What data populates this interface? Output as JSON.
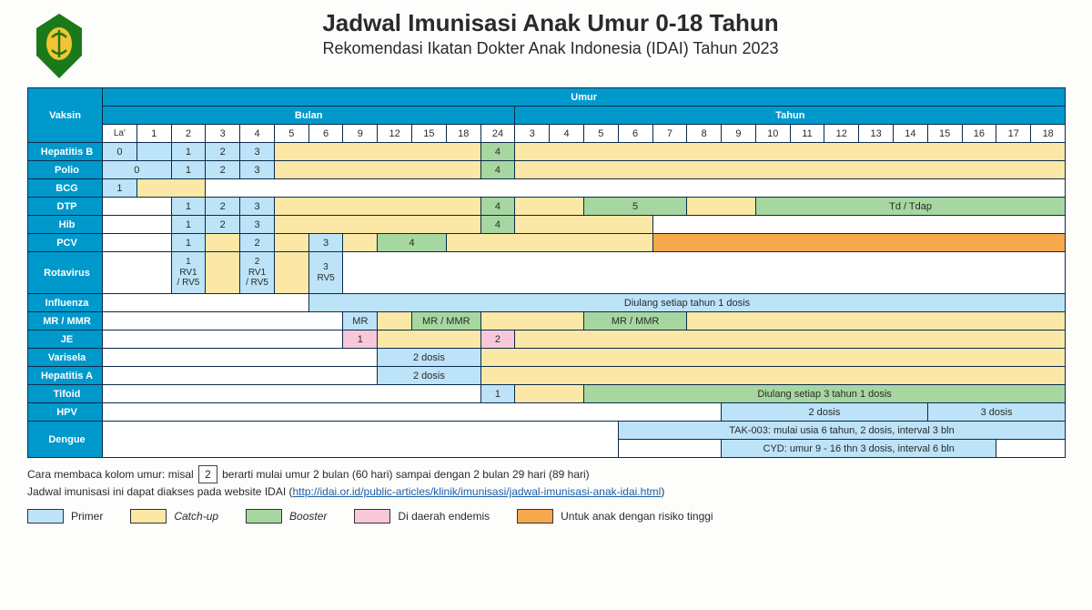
{
  "title": "Jadwal Imunisasi Anak Umur 0-18 Tahun",
  "subtitle": "Rekomendasi Ikatan Dokter Anak Indonesia (IDAI) Tahun 2023",
  "colors": {
    "header_blue": "#0099cc",
    "border": "#0a2a4a",
    "primer": "#bde3f8",
    "catchup": "#fbe8a6",
    "booster": "#a7d7a0",
    "endemis": "#f8c7d9",
    "risiko": "#f5a84c",
    "white": "#ffffff"
  },
  "headers": {
    "vaksin": "Vaksin",
    "umur": "Umur",
    "bulan": "Bulan",
    "tahun": "Tahun"
  },
  "age_cols": {
    "months": [
      "La'",
      "1",
      "2",
      "3",
      "4",
      "5",
      "6",
      "9",
      "12",
      "15",
      "18",
      "24"
    ],
    "years": [
      "3",
      "4",
      "5",
      "6",
      "7",
      "8",
      "9",
      "10",
      "11",
      "12",
      "13",
      "14",
      "15",
      "16",
      "17",
      "18"
    ]
  },
  "vaccines": [
    "Hepatitis B",
    "Polio",
    "BCG",
    "DTP",
    "Hib",
    "PCV",
    "Rotavirus",
    "Influenza",
    "MR / MMR",
    "JE",
    "Varisela",
    "Hepatitis A",
    "Tifoid",
    "HPV",
    "Dengue"
  ],
  "cells": {
    "HepatitisB": {
      "0": {
        "c": "primer",
        "t": "0",
        "span": 1
      },
      "1": {
        "c": "primer",
        "t": "",
        "span": 1
      },
      "2": {
        "c": "primer",
        "t": "1"
      },
      "3": {
        "c": "primer",
        "t": "2"
      },
      "4": {
        "c": "primer",
        "t": "3"
      },
      "5": {
        "c": "catchup",
        "span": 6
      },
      "11": {
        "c": "booster",
        "t": "4"
      },
      "12": {
        "c": "catchup",
        "span": 16
      }
    },
    "Polio": {
      "0": {
        "c": "primer",
        "t": "0",
        "span": 2
      },
      "2": {
        "c": "primer",
        "t": "1"
      },
      "3": {
        "c": "primer",
        "t": "2"
      },
      "4": {
        "c": "primer",
        "t": "3"
      },
      "5": {
        "c": "catchup",
        "span": 6
      },
      "11": {
        "c": "booster",
        "t": "4"
      },
      "12": {
        "c": "catchup",
        "span": 16
      }
    },
    "BCG": {
      "0": {
        "c": "primer",
        "t": "1"
      },
      "1": {
        "c": "catchup",
        "span": 2
      },
      "3": {
        "c": "white",
        "span": 25
      }
    },
    "DTP": {
      "0": {
        "c": "white",
        "span": 2
      },
      "2": {
        "c": "primer",
        "t": "1"
      },
      "3": {
        "c": "primer",
        "t": "2"
      },
      "4": {
        "c": "primer",
        "t": "3"
      },
      "5": {
        "c": "catchup",
        "span": 6
      },
      "11": {
        "c": "booster",
        "t": "4"
      },
      "12": {
        "c": "catchup",
        "span": 2
      },
      "14": {
        "c": "booster",
        "t": "5",
        "span": 3
      },
      "17": {
        "c": "catchup",
        "span": 2
      },
      "19": {
        "c": "booster",
        "t": "Td / Tdap",
        "span": 9
      }
    },
    "Hib": {
      "0": {
        "c": "white",
        "span": 2
      },
      "2": {
        "c": "primer",
        "t": "1"
      },
      "3": {
        "c": "primer",
        "t": "2"
      },
      "4": {
        "c": "primer",
        "t": "3"
      },
      "5": {
        "c": "catchup",
        "span": 6
      },
      "11": {
        "c": "booster",
        "t": "4"
      },
      "12": {
        "c": "catchup",
        "span": 4
      },
      "16": {
        "c": "white",
        "span": 12
      }
    },
    "PCV": {
      "0": {
        "c": "white",
        "span": 2
      },
      "2": {
        "c": "primer",
        "t": "1"
      },
      "3": {
        "c": "catchup"
      },
      "4": {
        "c": "primer",
        "t": "2"
      },
      "5": {
        "c": "catchup"
      },
      "6": {
        "c": "primer",
        "t": "3"
      },
      "7": {
        "c": "catchup"
      },
      "8": {
        "c": "booster",
        "t": "4",
        "span": 2
      },
      "10": {
        "c": "catchup",
        "span": 6
      },
      "16": {
        "c": "risiko",
        "span": 12
      }
    },
    "Rotavirus": {
      "0": {
        "c": "white",
        "span": 2
      },
      "2": {
        "c": "primer",
        "t": "1<br>RV1<br>/ RV5"
      },
      "3": {
        "c": "catchup"
      },
      "4": {
        "c": "primer",
        "t": "2<br>RV1<br>/ RV5"
      },
      "5": {
        "c": "catchup"
      },
      "6": {
        "c": "primer",
        "t": "3<br>RV5"
      },
      "7": {
        "c": "white",
        "span": 21
      }
    },
    "Influenza": {
      "0": {
        "c": "white",
        "span": 6
      },
      "6": {
        "c": "primer",
        "t": "Diulang setiap tahun 1 dosis",
        "span": 22
      }
    },
    "MRMMR": {
      "0": {
        "c": "white",
        "span": 7
      },
      "7": {
        "c": "primer",
        "t": "MR"
      },
      "8": {
        "c": "catchup"
      },
      "9": {
        "c": "booster",
        "t": "MR / MMR",
        "span": 2
      },
      "11": {
        "c": "catchup",
        "span": 3
      },
      "14": {
        "c": "booster",
        "t": "MR / MMR",
        "span": 3
      },
      "17": {
        "c": "catchup",
        "span": 11
      }
    },
    "JE": {
      "0": {
        "c": "white",
        "span": 7
      },
      "7": {
        "c": "endemis",
        "t": "1"
      },
      "8": {
        "c": "catchup",
        "span": 3
      },
      "11": {
        "c": "endemis",
        "t": "2"
      },
      "12": {
        "c": "catchup",
        "span": 16
      }
    },
    "Varisela": {
      "0": {
        "c": "white",
        "span": 8
      },
      "8": {
        "c": "primer",
        "t": "2 dosis",
        "span": 3
      },
      "11": {
        "c": "catchup",
        "span": 17
      }
    },
    "HepatitisA": {
      "0": {
        "c": "white",
        "span": 8
      },
      "8": {
        "c": "primer",
        "t": "2 dosis",
        "span": 3
      },
      "11": {
        "c": "catchup",
        "span": 17
      }
    },
    "Tifoid": {
      "0": {
        "c": "white",
        "span": 11
      },
      "11": {
        "c": "primer",
        "t": "1"
      },
      "12": {
        "c": "catchup",
        "span": 2
      },
      "14": {
        "c": "booster",
        "t": "Diulang setiap 3 tahun 1 dosis",
        "span": 14
      }
    },
    "HPV": {
      "0": {
        "c": "white",
        "span": 18
      },
      "18": {
        "c": "primer",
        "t": "2 dosis",
        "span": 6
      },
      "24": {
        "c": "primer",
        "t": "3 dosis",
        "span": 4
      }
    },
    "Dengue": {
      "0": {
        "c": "white",
        "span": 15
      },
      "top": {
        "c": "primer",
        "t": "TAK-003:  mulai usia 6 tahun,  2 dosis, interval 3 bln",
        "span": 13
      },
      "bot0": {
        "c": "white",
        "span": 3
      },
      "bot": {
        "c": "primer",
        "t": "CYD: umur 9 - 16 thn 3 dosis, interval 6 bln",
        "span": 8
      },
      "bot2": {
        "c": "white",
        "span": 2
      }
    }
  },
  "notes": {
    "line1_a": "Cara membaca kolom umur: misal",
    "line1_box": "2",
    "line1_b": "berarti mulai umur 2 bulan (60 hari) sampai dengan 2 bulan 29 hari (89 hari)",
    "line2_a": "Jadwal imunisasi ini dapat diakses pada website IDAI (",
    "line2_link": "http://idai.or.id/public-articles/klinik/imunisasi/jadwal-imunisasi-anak-idai.html",
    "line2_b": ")"
  },
  "legend": [
    {
      "color": "primer",
      "label": "Primer",
      "italic": false
    },
    {
      "color": "catchup",
      "label": "Catch-up",
      "italic": true
    },
    {
      "color": "booster",
      "label": "Booster",
      "italic": true
    },
    {
      "color": "endemis",
      "label": "Di daerah endemis",
      "italic": false
    },
    {
      "color": "risiko",
      "label": "Untuk anak dengan risiko tinggi",
      "italic": false
    }
  ]
}
